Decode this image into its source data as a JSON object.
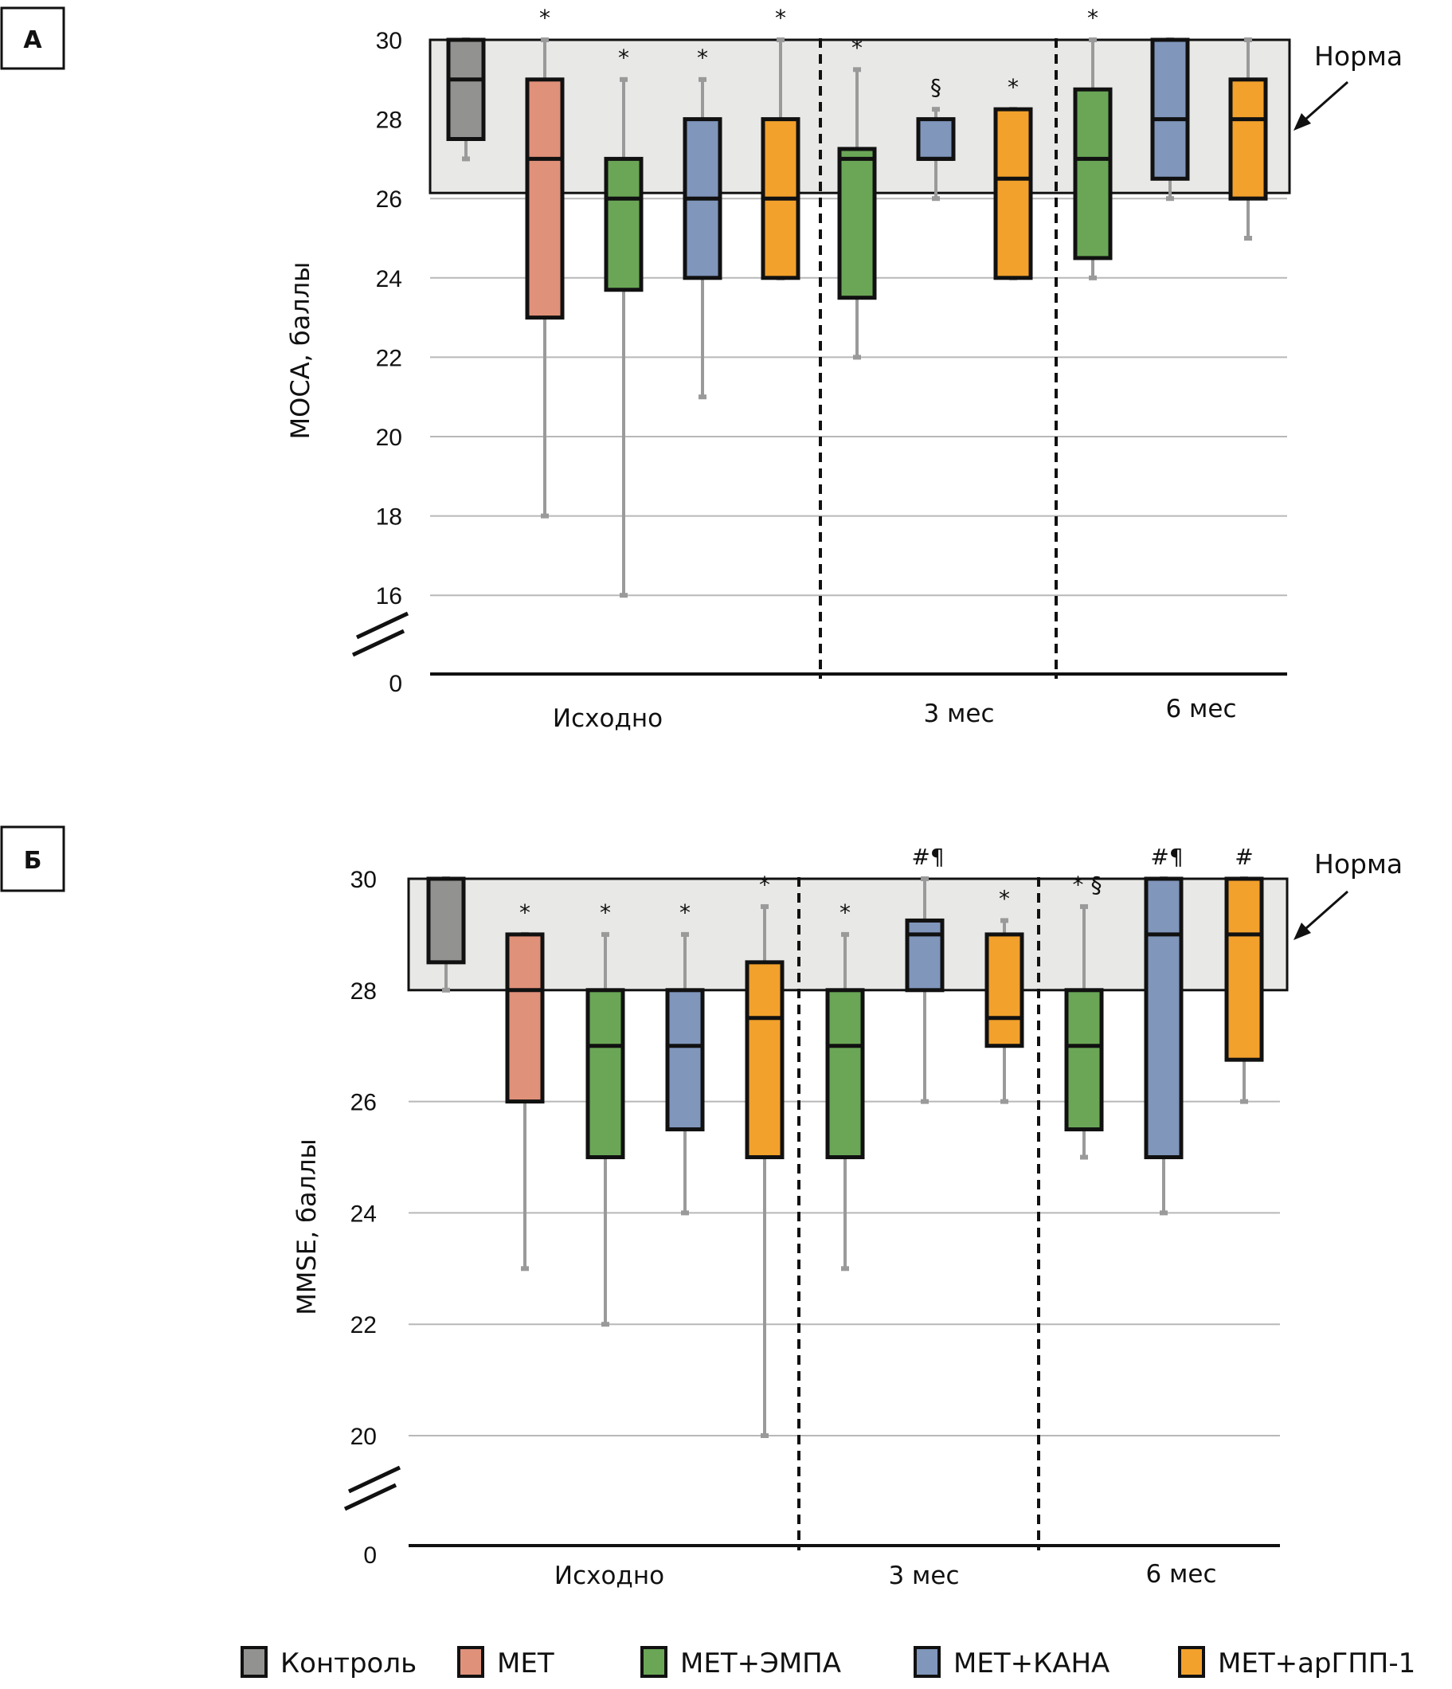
{
  "colors": {
    "control": "#929290",
    "met": "#e0917a",
    "empa": "#6aa656",
    "kana": "#8096bb",
    "glp1": "#f2a12c",
    "norm_band": "#e8e8e6",
    "whisker": "#9a9a9a",
    "grid": "#b8b8b8"
  },
  "legend": [
    {
      "key": "control",
      "label": "Контроль"
    },
    {
      "key": "met",
      "label": "МЕТ"
    },
    {
      "key": "empa",
      "label": "МЕТ+ЭМПА"
    },
    {
      "key": "kana",
      "label": "МЕТ+КАНА"
    },
    {
      "key": "glp1",
      "label": "МЕТ+арГПП-1"
    }
  ],
  "chart_data": [
    {
      "type": "boxplot",
      "panel_label": "А",
      "ylabel": "МОСА, баллы",
      "yticks": [
        "30",
        "28",
        "26",
        "24",
        "22",
        "20",
        "18",
        "16",
        "0"
      ],
      "ytick_values": [
        30,
        28,
        26,
        24,
        22,
        20,
        18,
        16
      ],
      "axis_break": true,
      "ylim": [
        16,
        30
      ],
      "norm_range": [
        26,
        30
      ],
      "norm_label": "Норма",
      "groups": [
        "Исходно",
        "3 мес",
        "6 мес"
      ],
      "boxes": [
        {
          "group": "Исходно",
          "series": "control",
          "whisker_low": 27,
          "q1": 27.5,
          "median": 29,
          "q3": 30,
          "whisker_high": 30,
          "mark": ""
        },
        {
          "group": "Исходно",
          "series": "met",
          "whisker_low": 18,
          "q1": 23,
          "median": 27,
          "q3": 29,
          "whisker_high": 30,
          "mark": "*"
        },
        {
          "group": "Исходно",
          "series": "empa",
          "whisker_low": 16,
          "q1": 23.7,
          "median": 26,
          "q3": 27,
          "whisker_high": 29,
          "mark": "*"
        },
        {
          "group": "Исходно",
          "series": "kana",
          "whisker_low": 21,
          "q1": 24,
          "median": 26,
          "q3": 28,
          "whisker_high": 29,
          "mark": "*"
        },
        {
          "group": "Исходно",
          "series": "glp1",
          "whisker_low": 24,
          "q1": 24,
          "median": 26,
          "q3": 28,
          "whisker_high": 30,
          "mark": "*"
        },
        {
          "group": "3 мес",
          "series": "empa",
          "whisker_low": 22,
          "q1": 23.5,
          "median": 27,
          "q3": 27.25,
          "whisker_high": 29.25,
          "mark": "*"
        },
        {
          "group": "3 мес",
          "series": "kana",
          "whisker_low": 26,
          "q1": 27,
          "median": 27,
          "q3": 28,
          "whisker_high": 28.25,
          "mark": "§"
        },
        {
          "group": "3 мес",
          "series": "glp1",
          "whisker_low": 24,
          "q1": 24,
          "median": 26.5,
          "q3": 28.25,
          "whisker_high": 28.25,
          "mark": "*"
        },
        {
          "group": "6 мес",
          "series": "empa",
          "whisker_low": 24,
          "q1": 24.5,
          "median": 27,
          "q3": 28.75,
          "whisker_high": 30,
          "mark": "*"
        },
        {
          "group": "6 мес",
          "series": "kana",
          "whisker_low": 26,
          "q1": 26.5,
          "median": 28,
          "q3": 30,
          "whisker_high": 30,
          "mark": ""
        },
        {
          "group": "6 мес",
          "series": "glp1",
          "whisker_low": 25,
          "q1": 26,
          "median": 28,
          "q3": 29,
          "whisker_high": 30,
          "mark": ""
        }
      ]
    },
    {
      "type": "boxplot",
      "panel_label": "Б",
      "ylabel": "MMSE, баллы",
      "yticks": [
        "30",
        "28",
        "26",
        "24",
        "22",
        "20",
        "0"
      ],
      "ytick_values": [
        30,
        28,
        26,
        24,
        22,
        20
      ],
      "axis_break": true,
      "ylim": [
        20,
        30
      ],
      "norm_range": [
        28,
        30
      ],
      "norm_label": "Норма",
      "groups": [
        "Исходно",
        "3 мес",
        "6 мес"
      ],
      "boxes": [
        {
          "group": "Исходно",
          "series": "control",
          "whisker_low": 28,
          "q1": 28.5,
          "median": 30,
          "q3": 30,
          "whisker_high": 30,
          "mark": ""
        },
        {
          "group": "Исходно",
          "series": "met",
          "whisker_low": 23,
          "q1": 26,
          "median": 28,
          "q3": 29,
          "whisker_high": 29,
          "mark": "*"
        },
        {
          "group": "Исходно",
          "series": "empa",
          "whisker_low": 22,
          "q1": 25,
          "median": 27,
          "q3": 28,
          "whisker_high": 29,
          "mark": "*"
        },
        {
          "group": "Исходно",
          "series": "kana",
          "whisker_low": 24,
          "q1": 25.5,
          "median": 27,
          "q3": 28,
          "whisker_high": 29,
          "mark": "*"
        },
        {
          "group": "Исходно",
          "series": "glp1",
          "whisker_low": 20,
          "q1": 25,
          "median": 27.5,
          "q3": 28.5,
          "whisker_high": 29.5,
          "mark": "*"
        },
        {
          "group": "3 мес",
          "series": "empa",
          "whisker_low": 23,
          "q1": 25,
          "median": 27,
          "q3": 28,
          "whisker_high": 29,
          "mark": "*"
        },
        {
          "group": "3 мес",
          "series": "kana",
          "whisker_low": 26,
          "q1": 28,
          "median": 29,
          "q3": 29.25,
          "whisker_high": 30,
          "mark": "#¶"
        },
        {
          "group": "3 мес",
          "series": "glp1",
          "whisker_low": 26,
          "q1": 27,
          "median": 27.5,
          "q3": 29,
          "whisker_high": 29.25,
          "mark": "*"
        },
        {
          "group": "6 мес",
          "series": "empa",
          "whisker_low": 25,
          "q1": 25.5,
          "median": 27,
          "q3": 28,
          "whisker_high": 29.5,
          "mark": "* §"
        },
        {
          "group": "6 мес",
          "series": "kana",
          "whisker_low": 24,
          "q1": 25,
          "median": 29,
          "q3": 30,
          "whisker_high": 30,
          "mark": "#¶"
        },
        {
          "group": "6 мес",
          "series": "glp1",
          "whisker_low": 26,
          "q1": 26.75,
          "median": 29,
          "q3": 30,
          "whisker_high": 30,
          "mark": "#"
        }
      ]
    }
  ]
}
